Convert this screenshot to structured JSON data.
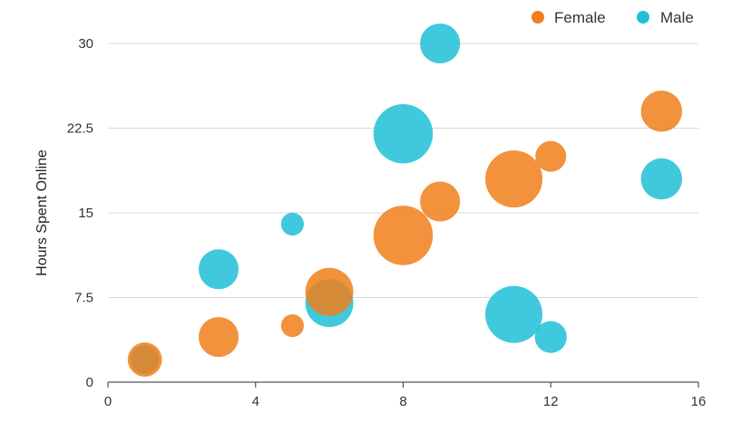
{
  "chart_data": {
    "type": "scatter",
    "subtype": "bubble",
    "title": "",
    "xlabel": "",
    "ylabel": "Hours Spent Online",
    "xlim": [
      0,
      16
    ],
    "ylim": [
      0,
      30
    ],
    "x_ticks": [
      "0",
      "4",
      "8",
      "12",
      "16"
    ],
    "y_ticks": [
      "0",
      "7.5",
      "15",
      "22.5",
      "30"
    ],
    "grid": "horizontal",
    "legend_position": "top-right",
    "series": [
      {
        "name": "Female",
        "color": "#f07f1b",
        "points": [
          {
            "x": 1,
            "y": 2,
            "size": 30
          },
          {
            "x": 3,
            "y": 4,
            "size": 35
          },
          {
            "x": 5,
            "y": 5,
            "size": 20
          },
          {
            "x": 6,
            "y": 8,
            "size": 42
          },
          {
            "x": 8,
            "y": 13,
            "size": 52
          },
          {
            "x": 9,
            "y": 16,
            "size": 35
          },
          {
            "x": 11,
            "y": 18,
            "size": 50
          },
          {
            "x": 12,
            "y": 20,
            "size": 27
          },
          {
            "x": 15,
            "y": 24,
            "size": 36
          }
        ]
      },
      {
        "name": "Male",
        "color": "#1fc0d6",
        "points": [
          {
            "x": 1,
            "y": 2,
            "size": 25
          },
          {
            "x": 3,
            "y": 10,
            "size": 35
          },
          {
            "x": 5,
            "y": 14,
            "size": 20
          },
          {
            "x": 6,
            "y": 7,
            "size": 42
          },
          {
            "x": 8,
            "y": 22,
            "size": 52
          },
          {
            "x": 9,
            "y": 30,
            "size": 35
          },
          {
            "x": 11,
            "y": 6,
            "size": 50
          },
          {
            "x": 12,
            "y": 4,
            "size": 28
          },
          {
            "x": 15,
            "y": 18,
            "size": 36
          }
        ]
      }
    ]
  }
}
